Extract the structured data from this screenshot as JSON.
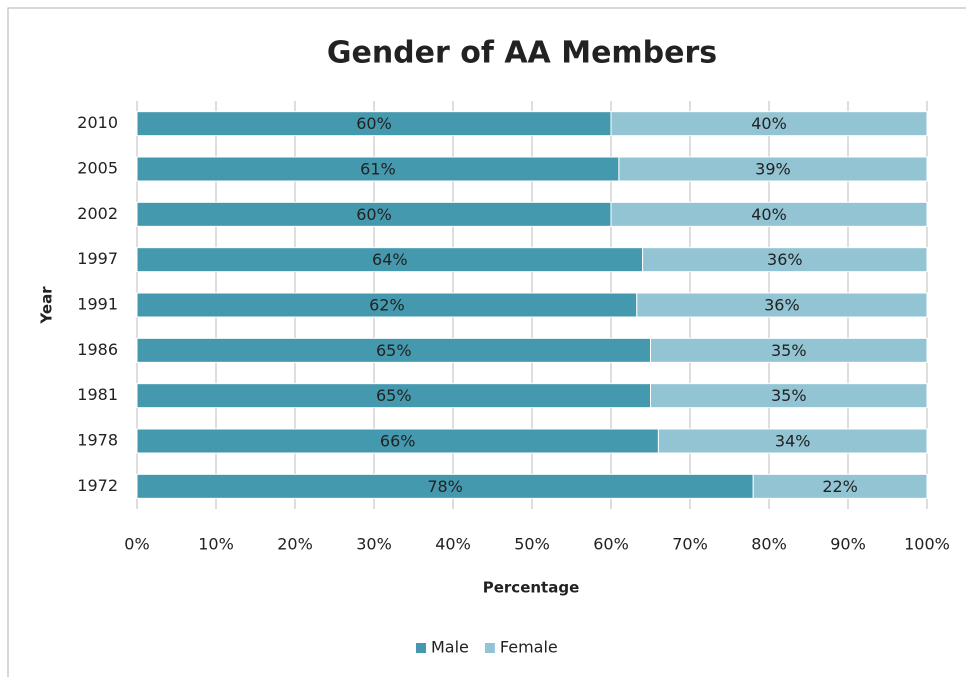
{
  "chart_data": {
    "type": "stacked_bar_horizontal_percent",
    "title": "Gender of AA Members",
    "y_axis_label": "Year",
    "x_axis_label": "Percentage",
    "categories": [
      "2010",
      "2005",
      "2002",
      "1997",
      "1991",
      "1986",
      "1981",
      "1978",
      "1972"
    ],
    "series": [
      {
        "name": "Male",
        "color": "#4599ae",
        "values": [
          60,
          61,
          60,
          64,
          62,
          65,
          65,
          66,
          78
        ],
        "value_labels": [
          "60%",
          "61%",
          "60%",
          "64%",
          "62%",
          "65%",
          "65%",
          "66%",
          "78%"
        ]
      },
      {
        "name": "Female",
        "color": "#93c4d4",
        "values": [
          40,
          39,
          40,
          36,
          36,
          35,
          35,
          34,
          22
        ],
        "value_labels": [
          "40%",
          "39%",
          "40%",
          "36%",
          "36%",
          "35%",
          "35%",
          "34%",
          "22%"
        ]
      }
    ],
    "xlim": [
      0,
      100
    ],
    "xticks": [
      {
        "value": 0,
        "label": "0%"
      },
      {
        "value": 10,
        "label": "10%"
      },
      {
        "value": 20,
        "label": "20%"
      },
      {
        "value": 30,
        "label": "30%"
      },
      {
        "value": 40,
        "label": "40%"
      },
      {
        "value": 50,
        "label": "50%"
      },
      {
        "value": 60,
        "label": "60%"
      },
      {
        "value": 70,
        "label": "70%"
      },
      {
        "value": 80,
        "label": "80%"
      },
      {
        "value": 90,
        "label": "90%"
      },
      {
        "value": 100,
        "label": "100%"
      }
    ],
    "grid": true,
    "legend": "bottom"
  }
}
